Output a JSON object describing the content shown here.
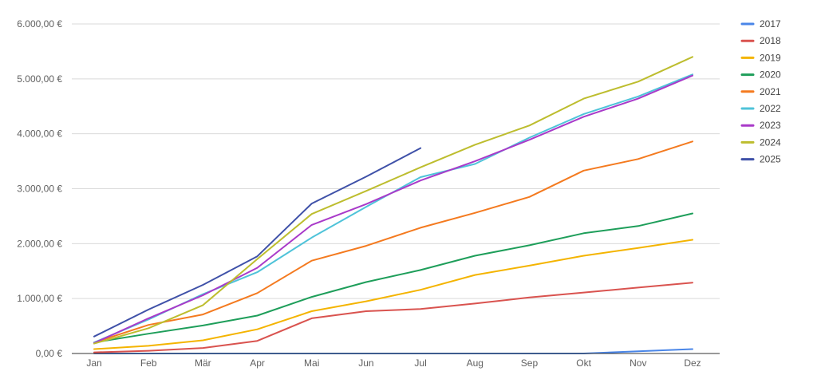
{
  "chart_data": {
    "type": "line",
    "title": "",
    "xlabel": "",
    "ylabel": "",
    "ylim": [
      0,
      6000
    ],
    "yticks": [
      0,
      1000,
      2000,
      3000,
      4000,
      5000,
      6000
    ],
    "ytick_labels": [
      "0,00 €",
      "1.000,00 €",
      "2.000,00 €",
      "3.000,00 €",
      "4.000,00 €",
      "5.000,00 €",
      "6.000,00 €"
    ],
    "grid": true,
    "legend_position": "right",
    "categories": [
      "Jan",
      "Feb",
      "Mär",
      "Apr",
      "Mai",
      "Jun",
      "Jul",
      "Aug",
      "Sep",
      "Okt",
      "Nov",
      "Dez"
    ],
    "series": [
      {
        "name": "2017",
        "color": "#4a86e8",
        "values": [
          0,
          0,
          0,
          0,
          0,
          0,
          0,
          0,
          0,
          0,
          40,
          80
        ]
      },
      {
        "name": "2018",
        "color": "#d9534f",
        "values": [
          20,
          50,
          100,
          230,
          640,
          770,
          810,
          910,
          1020,
          1110,
          1200,
          1290
        ]
      },
      {
        "name": "2019",
        "color": "#f4b400",
        "values": [
          80,
          140,
          240,
          440,
          770,
          950,
          1160,
          1430,
          1600,
          1780,
          1920,
          2070
        ]
      },
      {
        "name": "2020",
        "color": "#1e9e5a",
        "values": [
          200,
          360,
          510,
          690,
          1030,
          1300,
          1520,
          1780,
          1970,
          2190,
          2320,
          2550
        ]
      },
      {
        "name": "2021",
        "color": "#f47a1f",
        "values": [
          200,
          520,
          710,
          1100,
          1690,
          1960,
          2290,
          2560,
          2850,
          3330,
          3540,
          3860
        ]
      },
      {
        "name": "2022",
        "color": "#4fc3d9",
        "values": [
          200,
          620,
          1080,
          1480,
          2110,
          2670,
          3210,
          3450,
          3930,
          4360,
          4680,
          5080
        ]
      },
      {
        "name": "2023",
        "color": "#a93ac9",
        "values": [
          190,
          640,
          1060,
          1560,
          2340,
          2720,
          3150,
          3500,
          3890,
          4310,
          4640,
          5060
        ]
      },
      {
        "name": "2024",
        "color": "#bdbd2e",
        "values": [
          180,
          460,
          880,
          1720,
          2540,
          2960,
          3390,
          3800,
          4150,
          4640,
          4950,
          5400
        ]
      },
      {
        "name": "2025",
        "color": "#3f51a8",
        "values": [
          310,
          800,
          1250,
          1770,
          2730,
          3220,
          3740,
          null,
          null,
          null,
          null,
          null
        ]
      }
    ]
  }
}
